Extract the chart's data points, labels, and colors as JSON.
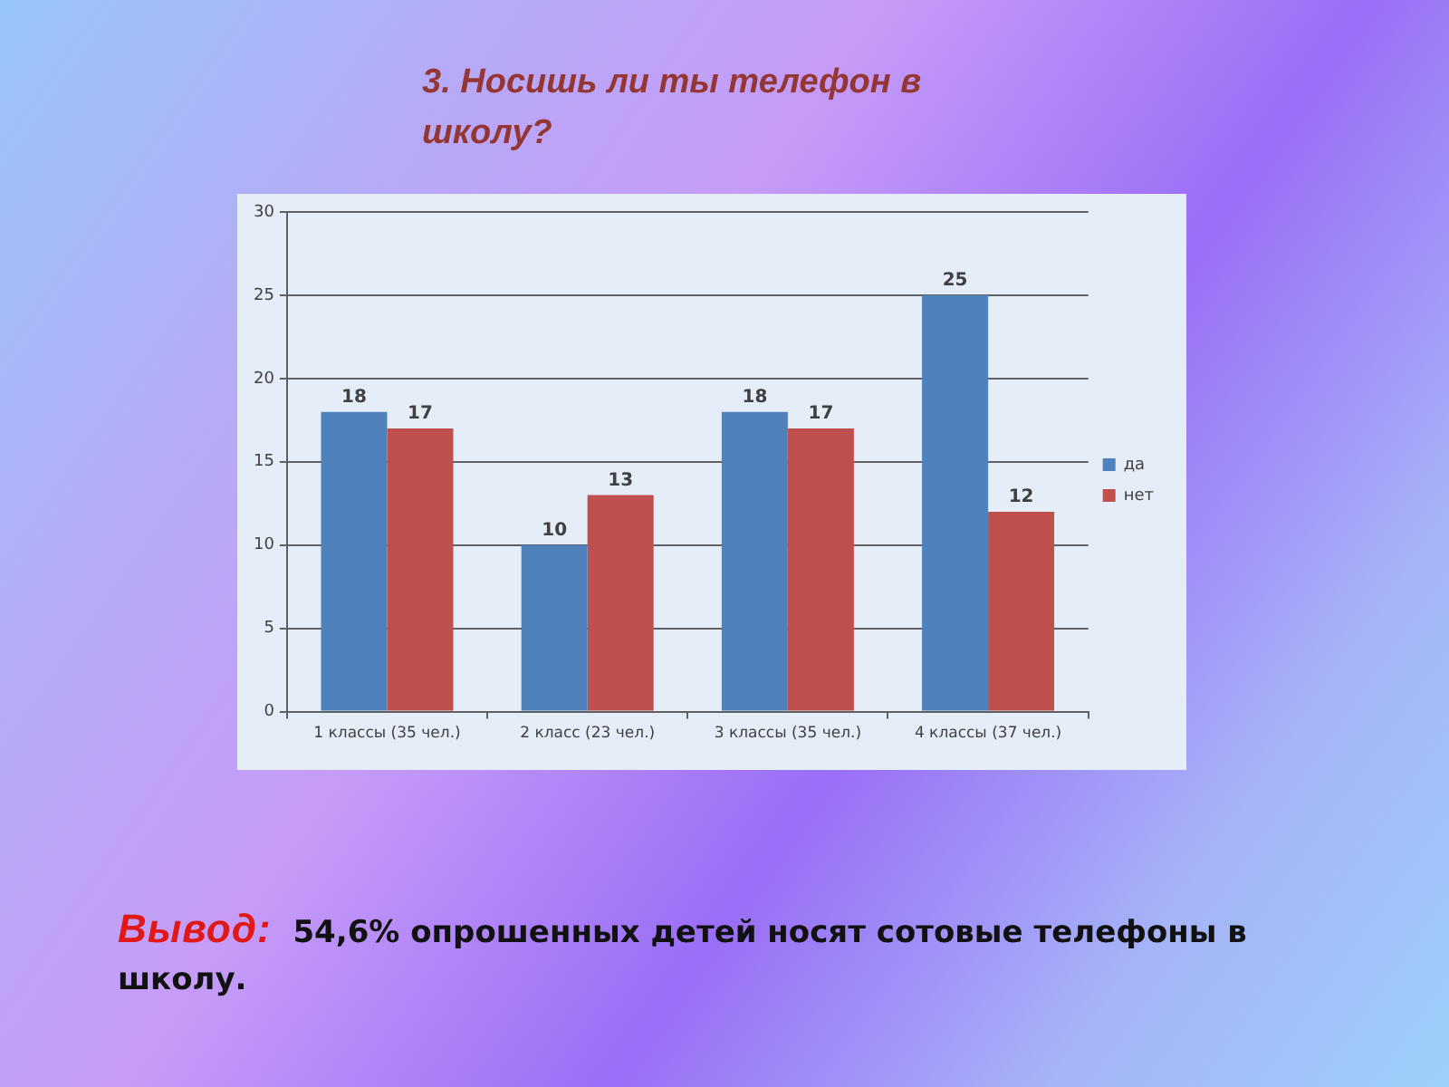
{
  "chart_data": {
    "type": "bar",
    "title": "3. Носишь ли ты телефон в школу?",
    "categories": [
      "1 классы (35 чел.)",
      "2 класс (23 чел.)",
      "3 классы (35 чел.)",
      "4 классы (37 чел.)"
    ],
    "series": [
      {
        "name": "да",
        "color": "#4f81bd",
        "values": [
          18,
          10,
          18,
          25
        ]
      },
      {
        "name": "нет",
        "color": "#c0504d",
        "values": [
          17,
          13,
          17,
          12
        ]
      }
    ],
    "ylim": [
      0,
      30
    ],
    "yticks": [
      0,
      5,
      10,
      15,
      20,
      25,
      30
    ],
    "grid": "y",
    "legend": "right",
    "data_labels": true,
    "annotations": [
      "Вывод: 54,6% опрошенных детей носят сотовые телефоны в школу."
    ]
  }
}
